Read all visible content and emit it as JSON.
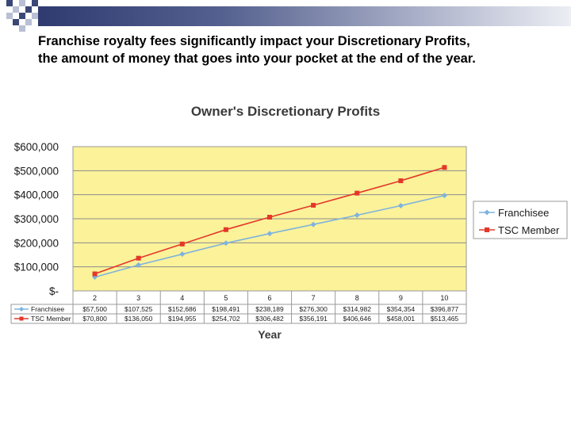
{
  "slide": {
    "lines": [
      "Franchise royalty fees significantly impact your Discretionary Profits,",
      "the amount of money that goes into your pocket at the end of the year."
    ],
    "colors": {
      "band_dark": "#2f3b70",
      "square_dark": "#3b4777",
      "square_light": "#b9bfd4"
    }
  },
  "chart_data": {
    "type": "line",
    "title": "Owner's Discretionary Profits",
    "xlabel": "Year",
    "ylabel": "",
    "x": [
      "2",
      "3",
      "4",
      "5",
      "6",
      "7",
      "8",
      "9",
      "10"
    ],
    "yticks": [
      "$600,000",
      "$500,000",
      "$400,000",
      "$300,000",
      "$200,000",
      "$100,000",
      "$-"
    ],
    "ylim": [
      0,
      600000
    ],
    "grid": true,
    "plot_background": "#fbf29a",
    "legend_position": "right",
    "series": [
      {
        "name": "Franchisee",
        "color": "#7fb3dd",
        "marker": "diamond",
        "values": [
          57500,
          107525,
          152686,
          198491,
          238189,
          276300,
          314982,
          354354,
          396877
        ],
        "labels": [
          "$57,500",
          "$107,525",
          "$152,686",
          "$198,491",
          "$238,189",
          "$276,300",
          "$314,982",
          "$354,354",
          "$396,877"
        ]
      },
      {
        "name": "TSC Member",
        "color": "#e3382a",
        "marker": "square",
        "values": [
          70800,
          136050,
          194955,
          254702,
          306482,
          356191,
          406646,
          458001,
          513465
        ],
        "labels": [
          "$70,800",
          "$136,050",
          "$194,955",
          "$254,702",
          "$306,482",
          "$356,191",
          "$406,646",
          "$458,001",
          "$513,465"
        ]
      }
    ]
  }
}
